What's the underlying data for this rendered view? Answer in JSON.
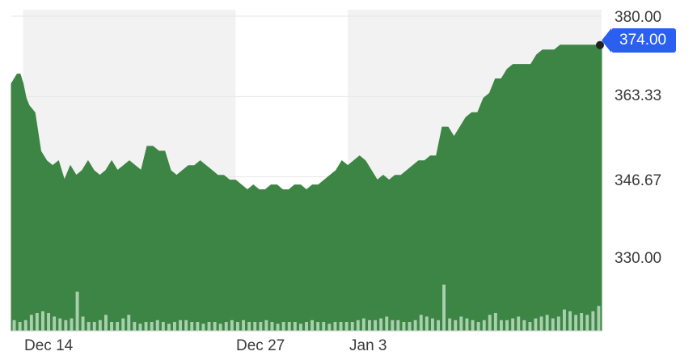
{
  "chart_data": {
    "type": "area",
    "title": "",
    "xlabel": "",
    "ylabel": "",
    "ylim": [
      328,
      380
    ],
    "x_ticks": [
      "Dec 14",
      "Dec 27",
      "Jan 3"
    ],
    "y_ticks": [
      "380.00",
      "363.33",
      "346.67",
      "330.00"
    ],
    "y_tick_values": [
      380,
      363.33,
      346.67,
      330
    ],
    "current_price": 374.0,
    "current_price_label": "374.00",
    "x_range": [
      0,
      100
    ],
    "x_tick_positions": [
      5,
      43,
      57
    ],
    "shaded_regions": [
      [
        2,
        38
      ],
      [
        57,
        100
      ]
    ],
    "grid": true,
    "colors": {
      "area": "#3d8544",
      "shade": "#f2f2f2",
      "badge": "#2b5ff0",
      "volume": "#a9d0ae"
    },
    "series": [
      {
        "x": [
          0,
          1,
          1.5,
          2,
          2.5,
          3,
          4,
          5,
          6,
          7,
          8,
          9,
          10,
          11,
          12,
          13,
          14,
          15,
          16,
          17,
          18,
          19,
          20,
          21,
          22,
          23,
          24,
          25,
          26,
          27,
          28,
          29,
          30,
          31,
          32,
          33,
          34,
          35,
          36,
          37,
          38,
          39,
          40,
          41,
          42,
          43,
          44,
          45,
          46,
          47,
          48,
          49,
          50,
          51,
          52,
          53,
          54,
          55,
          56,
          57,
          58,
          59,
          60,
          61,
          62,
          63,
          64,
          65,
          66,
          67,
          68,
          69,
          70,
          71,
          72,
          73,
          74,
          75,
          76,
          77,
          78,
          79,
          80,
          81,
          82,
          83,
          84,
          85,
          86,
          87,
          88,
          89,
          90,
          91,
          92,
          93,
          94,
          95,
          96,
          97,
          98,
          99,
          100
        ],
        "y": [
          366,
          368,
          368,
          366,
          363,
          361.5,
          360,
          352,
          350,
          349,
          350,
          346,
          349,
          347,
          348,
          350,
          348,
          347,
          348,
          350,
          348,
          349,
          350,
          349,
          348,
          353,
          353,
          352,
          352,
          348,
          347,
          348,
          349,
          349,
          350,
          349,
          348,
          347,
          347,
          346,
          346,
          345,
          344,
          345,
          344,
          344,
          345,
          345,
          344,
          344,
          345,
          345,
          344,
          345,
          345,
          346,
          347,
          348,
          350,
          349,
          350,
          351,
          350,
          348,
          346,
          347,
          346,
          347,
          347,
          348,
          349,
          350,
          350,
          351,
          351,
          357,
          357,
          355,
          357,
          359,
          360,
          360,
          363,
          364,
          367,
          367,
          369,
          370,
          370,
          370,
          370,
          372,
          373,
          373,
          373,
          374,
          374,
          374,
          374,
          374,
          374,
          374,
          374
        ],
        "volume": [
          6,
          5,
          6,
          9,
          10,
          11,
          10,
          8,
          7,
          6,
          7,
          22,
          8,
          5,
          5,
          6,
          9,
          5,
          5,
          7,
          9,
          5,
          4,
          5,
          5,
          6,
          5,
          4,
          5,
          6,
          6,
          5,
          5,
          4,
          5,
          5,
          4,
          5,
          6,
          5,
          6,
          5,
          5,
          5,
          6,
          5,
          4,
          5,
          5,
          5,
          4,
          5,
          6,
          5,
          5,
          4,
          5,
          5,
          5,
          5,
          6,
          7,
          6,
          6,
          7,
          8,
          6,
          6,
          5,
          5,
          6,
          9,
          8,
          7,
          6,
          26,
          7,
          6,
          8,
          7,
          6,
          5,
          6,
          9,
          10,
          6,
          6,
          7,
          8,
          6,
          5,
          7,
          8,
          9,
          7,
          8,
          12,
          11,
          9,
          10,
          9,
          11,
          14
        ]
      }
    ]
  }
}
